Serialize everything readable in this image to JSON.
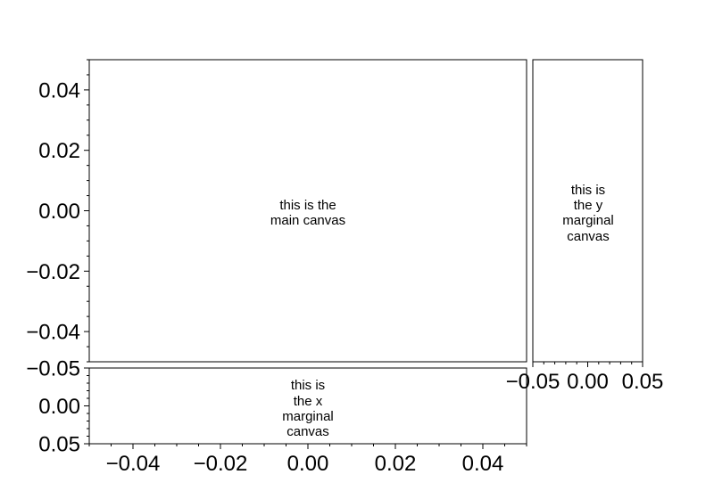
{
  "chart_data": [
    {
      "type": "scatter",
      "panel": "main",
      "xlim": [
        -0.05,
        0.05
      ],
      "ylim": [
        -0.05,
        0.05
      ],
      "xticks": [],
      "yticks": [
        0.04,
        0.02,
        0.0,
        -0.02,
        -0.04
      ],
      "ytick_labels": [
        "0.04",
        "0.02",
        "0.00",
        "−0.02",
        "−0.04"
      ],
      "annotation": [
        "this is the",
        "main canvas"
      ],
      "series": []
    },
    {
      "type": "scatter",
      "panel": "y-marginal",
      "xlim": [
        -0.05,
        0.05
      ],
      "ylim": [
        -0.05,
        0.05
      ],
      "xticks": [
        -0.05,
        0.0,
        0.05
      ],
      "xtick_labels": [
        "−0.05",
        "0.00",
        "0.05"
      ],
      "yticks": [],
      "annotation": [
        "this is",
        "the y",
        "marginal",
        "canvas"
      ],
      "series": []
    },
    {
      "type": "scatter",
      "panel": "x-marginal",
      "xlim": [
        -0.05,
        0.05
      ],
      "ylim": [
        0.05,
        -0.05
      ],
      "xticks": [
        -0.04,
        -0.02,
        0.0,
        0.02,
        0.04
      ],
      "xtick_labels": [
        "−0.04",
        "−0.02",
        "0.00",
        "0.02",
        "0.04"
      ],
      "yticks": [
        -0.05,
        0.0,
        0.05
      ],
      "ytick_labels": [
        "−0.05",
        "0.00",
        "0.05"
      ],
      "annotation": [
        "this is",
        "the x",
        "marginal",
        "canvas"
      ],
      "series": []
    }
  ]
}
